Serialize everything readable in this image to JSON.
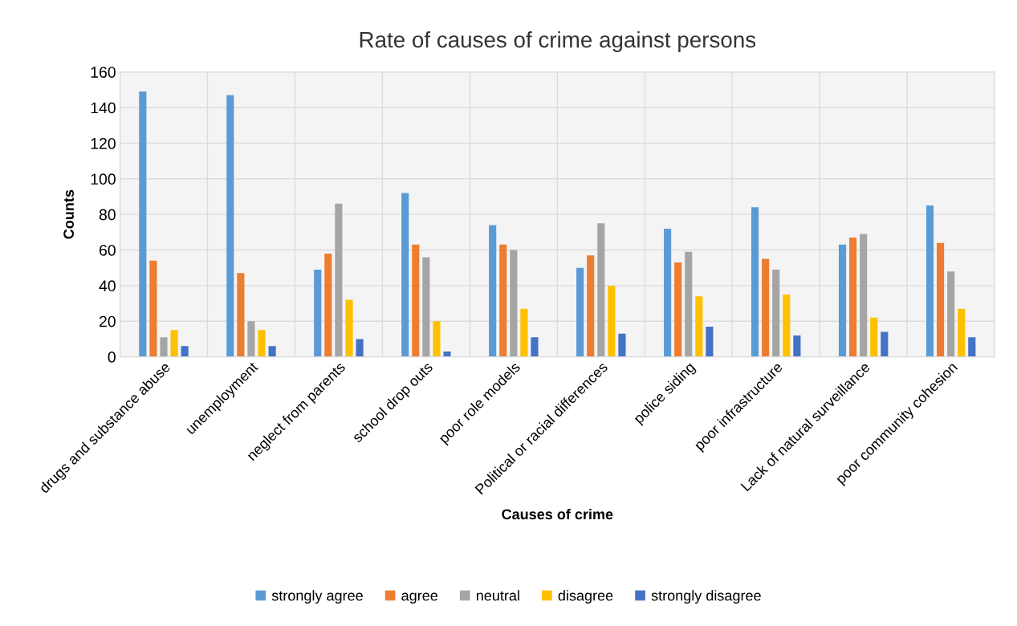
{
  "chart_data": {
    "type": "bar",
    "title": "Rate of causes of crime against persons",
    "xlabel": "Causes of crime",
    "ylabel": "Counts",
    "categories": [
      "drugs and substance abuse",
      "unemployment",
      "neglect from parents",
      "school drop outs",
      "poor role models",
      "Political or racial differences",
      "police siding",
      "poor infrastructure",
      "Lack of natural surveillance",
      "poor community cohesion"
    ],
    "series": [
      {
        "name": "strongly agree",
        "color": "#5b9bd5",
        "values": [
          149,
          147,
          49,
          92,
          74,
          50,
          72,
          84,
          63,
          85
        ]
      },
      {
        "name": "agree",
        "color": "#ed7d31",
        "values": [
          54,
          47,
          58,
          63,
          63,
          57,
          53,
          55,
          67,
          64
        ]
      },
      {
        "name": "neutral",
        "color": "#a5a5a5",
        "values": [
          11,
          20,
          86,
          56,
          60,
          75,
          59,
          49,
          69,
          48
        ]
      },
      {
        "name": "disagree",
        "color": "#ffc000",
        "values": [
          15,
          15,
          32,
          20,
          27,
          40,
          34,
          35,
          22,
          27
        ]
      },
      {
        "name": "strongly disagree",
        "color": "#4472c4",
        "values": [
          6,
          6,
          10,
          3,
          11,
          13,
          17,
          12,
          14,
          11
        ]
      }
    ],
    "ylim": [
      0,
      160
    ],
    "yticks": [
      0,
      20,
      40,
      60,
      80,
      100,
      120,
      140,
      160
    ],
    "grid": true,
    "legend": "bottom"
  }
}
